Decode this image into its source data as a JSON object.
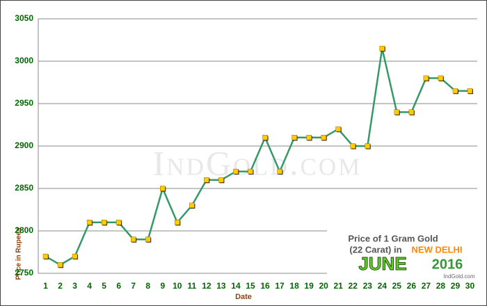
{
  "chart_data": {
    "type": "line",
    "y_label": "Price in Rupees",
    "x_label": "Date",
    "watermark": "IndGold.com",
    "legend_box": {
      "line1": "Price of 1 Gram Gold",
      "line2": "(22 Carat) in",
      "city": "NEW DELHI",
      "month": "JUNE",
      "year": "2016",
      "site": "IndGold.com"
    },
    "categories": [
      "1",
      "2",
      "3",
      "4",
      "5",
      "6",
      "7",
      "8",
      "9",
      "10",
      "11",
      "12",
      "13",
      "14",
      "15",
      "16",
      "17",
      "18",
      "19",
      "20",
      "21",
      "22",
      "23",
      "24",
      "25",
      "26",
      "27",
      "28",
      "29",
      "30"
    ],
    "series": [
      {
        "name": "Price",
        "color": "#339966",
        "marker_color": "#ffcc00",
        "values": [
          2770,
          2760,
          2770,
          2810,
          2810,
          2810,
          2790,
          2790,
          2850,
          2810,
          2830,
          2860,
          2860,
          2870,
          2870,
          2910,
          2870,
          2910,
          2910,
          2910,
          2920,
          2900,
          2900,
          3015,
          2940,
          2940,
          2980,
          2980,
          2965,
          2965
        ]
      }
    ],
    "ylim": [
      2750,
      3050
    ],
    "yticks": [
      2750,
      2800,
      2850,
      2900,
      2950,
      3000,
      3050
    ],
    "grid": true
  }
}
